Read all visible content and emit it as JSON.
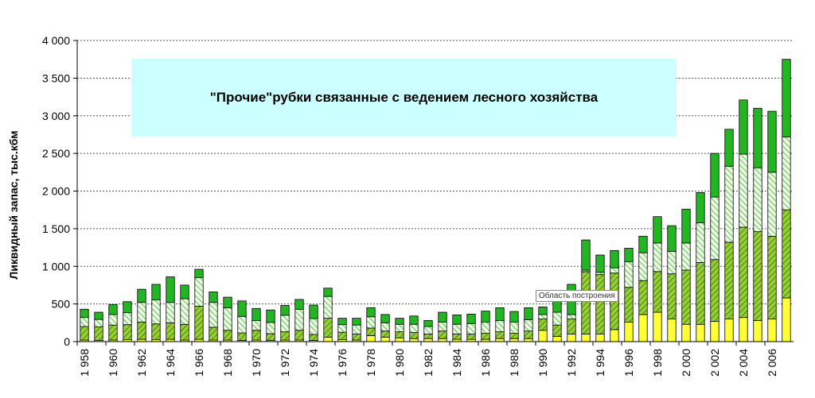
{
  "chart_data": {
    "type": "bar",
    "stacked": true,
    "title": "\"Прочие\"рубки связанные с ведением лесного хозяйства",
    "ylabel": "Ликвидный запас, тыс.кбм",
    "xlabel": "",
    "ylim": [
      0,
      4000
    ],
    "yticks": [
      "0",
      "500",
      "1 000",
      "1 500",
      "2 000",
      "2 500",
      "3 000",
      "3 500",
      "4 000"
    ],
    "ytick_values": [
      0,
      500,
      1000,
      1500,
      2000,
      2500,
      3000,
      3500,
      4000
    ],
    "xtick_labels": [
      "1 958",
      "1 960",
      "1 962",
      "1 964",
      "1 966",
      "1 968",
      "1 970",
      "1 972",
      "1 974",
      "1 976",
      "1 978",
      "1 980",
      "1 982",
      "1 984",
      "1 986",
      "1 988",
      "1 990",
      "1 992",
      "1 994",
      "1 996",
      "1 998",
      "2 000",
      "2 002",
      "2 004",
      "2 006"
    ],
    "grid": true,
    "categories": [
      "1958",
      "1959",
      "1960",
      "1961",
      "1962",
      "1963",
      "1964",
      "1965",
      "1966",
      "1967",
      "1968",
      "1969",
      "1970",
      "1971",
      "1972",
      "1973",
      "1974",
      "1975",
      "1976",
      "1977",
      "1978",
      "1979",
      "1980",
      "1981",
      "1982",
      "1983",
      "1984",
      "1985",
      "1986",
      "1987",
      "1988",
      "1989",
      "1990",
      "1991",
      "1992",
      "1993",
      "1994",
      "1995",
      "1996",
      "1997",
      "1998",
      "1999",
      "2000",
      "2001",
      "2002",
      "2003",
      "2004",
      "2005",
      "2006",
      "2007"
    ],
    "series": [
      {
        "style": "yellow",
        "values": [
          20,
          15,
          20,
          25,
          30,
          25,
          30,
          20,
          30,
          20,
          20,
          15,
          20,
          15,
          20,
          20,
          15,
          60,
          25,
          20,
          80,
          60,
          50,
          40,
          40,
          40,
          30,
          30,
          30,
          40,
          40,
          40,
          150,
          70,
          100,
          100,
          100,
          160,
          260,
          360,
          390,
          300,
          230,
          230,
          270,
          300,
          320,
          280,
          300,
          580
        ]
      },
      {
        "style": "green-hatched",
        "values": [
          180,
          180,
          200,
          200,
          230,
          210,
          220,
          210,
          440,
          170,
          130,
          100,
          130,
          90,
          110,
          130,
          80,
          250,
          100,
          80,
          100,
          80,
          80,
          80,
          60,
          100,
          70,
          70,
          80,
          90,
          70,
          100,
          150,
          150,
          200,
          830,
          790,
          750,
          460,
          450,
          540,
          600,
          720,
          820,
          820,
          1020,
          1200,
          1180,
          1100,
          1170
        ]
      },
      {
        "style": "light-hatched",
        "values": [
          120,
          100,
          140,
          160,
          260,
          320,
          270,
          340,
          380,
          330,
          300,
          220,
          130,
          150,
          220,
          280,
          210,
          290,
          100,
          120,
          150,
          110,
          100,
          110,
          100,
          120,
          130,
          140,
          150,
          150,
          150,
          150,
          60,
          170,
          60,
          20,
          30,
          70,
          340,
          370,
          380,
          300,
          360,
          530,
          830,
          1010,
          970,
          850,
          850,
          970
        ]
      },
      {
        "style": "green",
        "values": [
          110,
          95,
          130,
          145,
          175,
          205,
          340,
          180,
          110,
          140,
          140,
          205,
          160,
          165,
          130,
          130,
          180,
          110,
          85,
          90,
          120,
          110,
          80,
          110,
          80,
          130,
          125,
          125,
          145,
          170,
          140,
          160,
          100,
          170,
          400,
          400,
          230,
          230,
          180,
          220,
          350,
          340,
          450,
          400,
          580,
          490,
          720,
          790,
          810,
          1030
        ]
      }
    ]
  },
  "tooltip_text": "Область построения"
}
